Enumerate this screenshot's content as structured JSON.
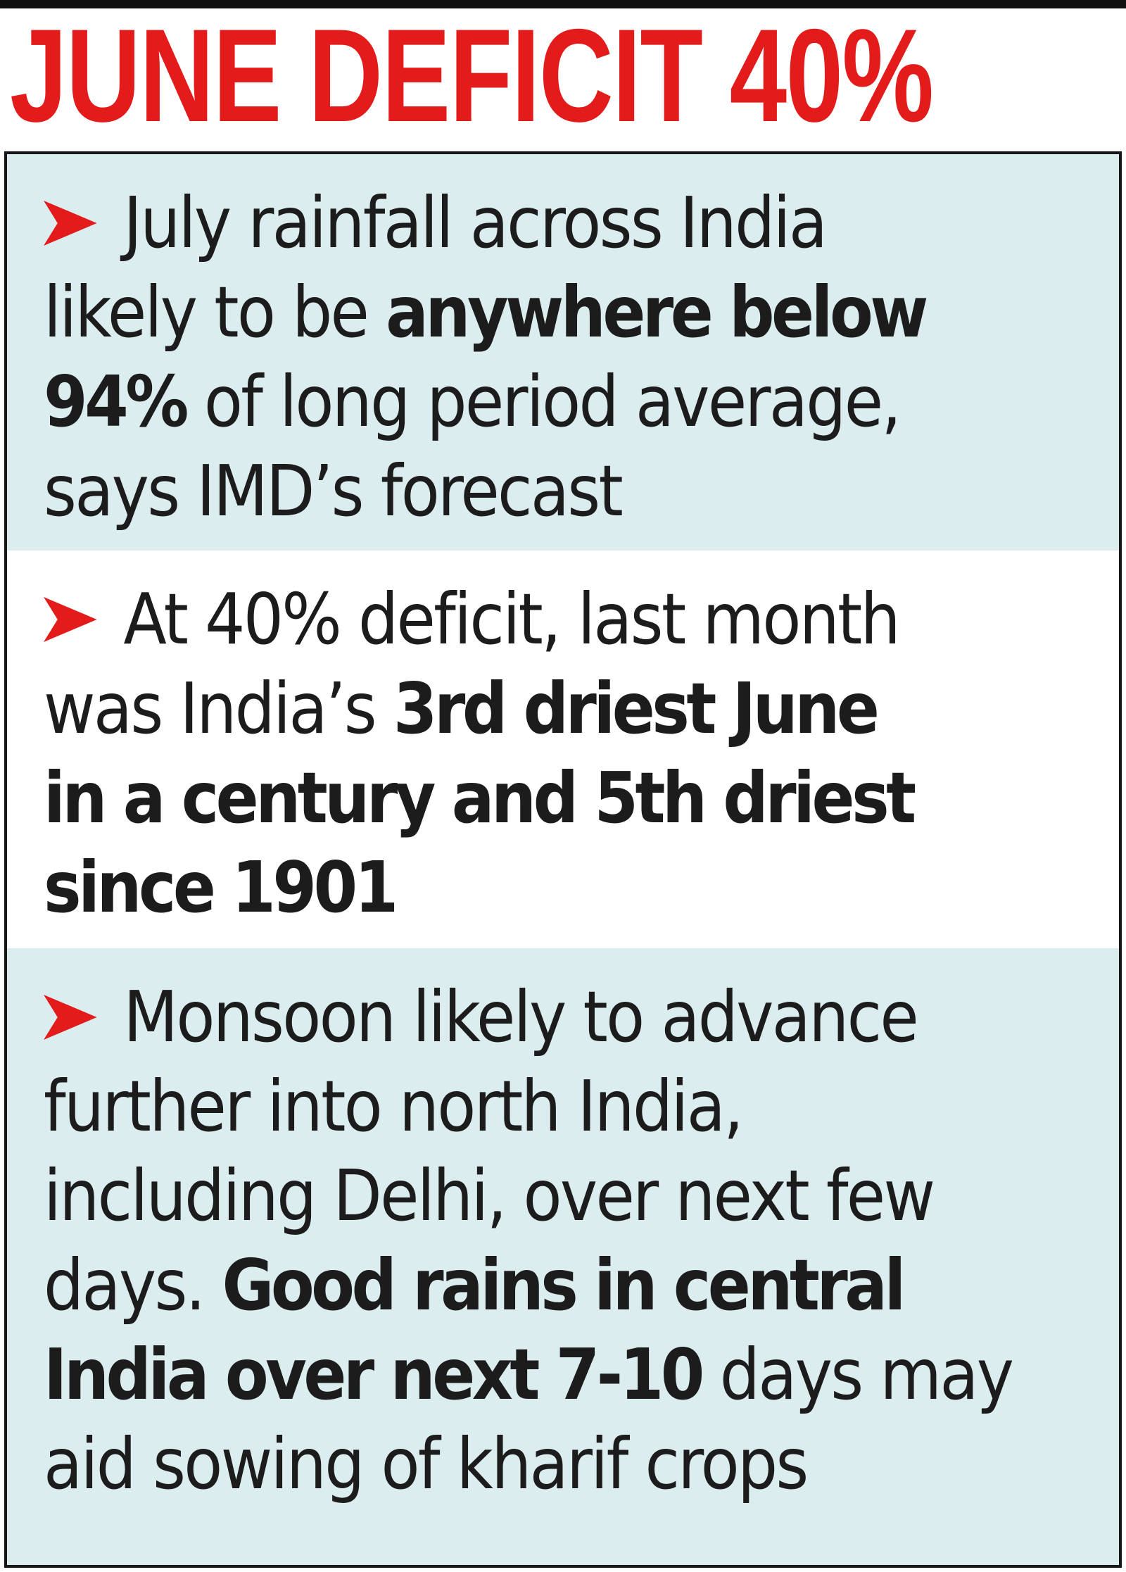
{
  "headline": "JUNE DEFICIT 40%",
  "colors": {
    "headline": "#e31b1b",
    "arrow": "#e31b1b",
    "shade": "#dcedf0",
    "text": "#1c1c1c"
  },
  "bullets": [
    {
      "icon": "arrowhead-icon",
      "lines": [
        [
          {
            "text": "July rainfall across India",
            "bold": false
          }
        ],
        [
          {
            "text": "likely to be ",
            "bold": false
          },
          {
            "text": "anywhere below",
            "bold": true
          }
        ],
        [
          {
            "text": "94%",
            "bold": true
          },
          {
            "text": " of long period average,",
            "bold": false
          }
        ],
        [
          {
            "text": "says IMD’s forecast",
            "bold": false
          }
        ]
      ]
    },
    {
      "icon": "arrowhead-icon",
      "lines": [
        [
          {
            "text": "At 40% deficit, last month",
            "bold": false
          }
        ],
        [
          {
            "text": "was India’s ",
            "bold": false
          },
          {
            "text": "3rd driest June",
            "bold": true
          }
        ],
        [
          {
            "text": "in a century and 5th driest",
            "bold": true
          }
        ],
        [
          {
            "text": "since 1901",
            "bold": true
          }
        ]
      ]
    },
    {
      "icon": "arrowhead-icon",
      "lines": [
        [
          {
            "text": "Monsoon likely to advance",
            "bold": false
          }
        ],
        [
          {
            "text": "further into north India,",
            "bold": false
          }
        ],
        [
          {
            "text": "including Delhi, over next few",
            "bold": false
          }
        ],
        [
          {
            "text": "days. ",
            "bold": false
          },
          {
            "text": "Good rains in central",
            "bold": true
          }
        ],
        [
          {
            "text": "India over next 7-10",
            "bold": true
          },
          {
            "text": " days may",
            "bold": false
          }
        ],
        [
          {
            "text": "aid sowing of kharif crops",
            "bold": false
          }
        ]
      ]
    }
  ]
}
